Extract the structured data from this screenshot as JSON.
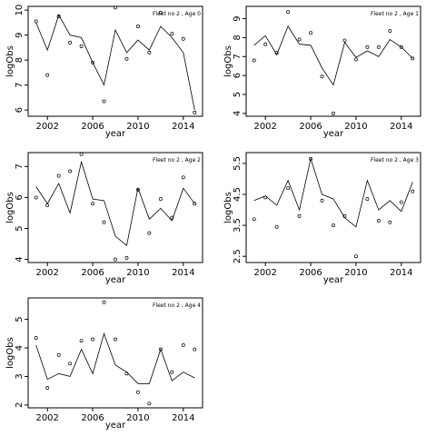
{
  "chart_data": [
    {
      "type": "line",
      "title": "Fleet no 2 , Age 0",
      "xlabel": "year",
      "ylabel": "logObs",
      "xlim": [
        2000.3,
        2015.7
      ],
      "ylim": [
        5.75,
        10.15
      ],
      "xticks": [
        2002,
        2006,
        2010,
        2014
      ],
      "yticks": [
        6,
        7,
        8,
        9,
        10
      ],
      "x": [
        2001,
        2002,
        2003,
        2004,
        2005,
        2006,
        2007,
        2008,
        2009,
        2010,
        2011,
        2012,
        2013,
        2014,
        2015
      ],
      "series": [
        {
          "type": "line",
          "values": [
            9.5,
            8.4,
            9.8,
            9.0,
            8.9,
            7.9,
            7.0,
            9.2,
            8.3,
            8.8,
            8.4,
            9.35,
            8.9,
            8.3,
            6.0
          ]
        },
        {
          "type": "scatter",
          "values": [
            9.55,
            7.4,
            9.75,
            8.7,
            8.55,
            7.9,
            6.35,
            10.1,
            8.05,
            9.35,
            8.3,
            9.9,
            9.05,
            8.85,
            5.9
          ]
        }
      ]
    },
    {
      "type": "line",
      "title": "Fleet no 2 , Age 1",
      "xlabel": "year",
      "ylabel": "logObs",
      "xlim": [
        2000.3,
        2015.7
      ],
      "ylim": [
        3.85,
        9.65
      ],
      "xticks": [
        2002,
        2006,
        2010,
        2014
      ],
      "yticks": [
        4,
        5,
        6,
        7,
        8,
        9
      ],
      "x": [
        2001,
        2002,
        2003,
        2004,
        2005,
        2006,
        2007,
        2008,
        2009,
        2010,
        2011,
        2012,
        2013,
        2014,
        2015
      ],
      "series": [
        {
          "type": "line",
          "values": [
            7.6,
            8.1,
            7.1,
            8.6,
            7.65,
            7.6,
            6.4,
            5.5,
            7.75,
            6.95,
            7.3,
            7.0,
            7.9,
            7.5,
            6.9
          ]
        },
        {
          "type": "scatter",
          "values": [
            6.8,
            7.65,
            7.2,
            9.35,
            7.9,
            8.25,
            5.95,
            4.0,
            7.85,
            6.85,
            7.5,
            7.5,
            8.35,
            7.5,
            6.9
          ]
        }
      ]
    },
    {
      "type": "line",
      "title": "Fleet no 2 , Age 2",
      "xlabel": "year",
      "ylabel": "logObs",
      "xlim": [
        2000.3,
        2015.7
      ],
      "ylim": [
        3.9,
        7.45
      ],
      "xticks": [
        2002,
        2006,
        2010,
        2014
      ],
      "yticks": [
        4.0,
        5.0,
        6.0,
        7.0
      ],
      "x": [
        2001,
        2002,
        2003,
        2004,
        2005,
        2006,
        2007,
        2008,
        2009,
        2010,
        2011,
        2012,
        2013,
        2014,
        2015
      ],
      "series": [
        {
          "type": "line",
          "values": [
            6.35,
            5.8,
            6.45,
            5.5,
            7.15,
            5.95,
            5.9,
            4.75,
            4.45,
            6.3,
            5.3,
            5.65,
            5.25,
            6.3,
            5.8
          ]
        },
        {
          "type": "scatter",
          "values": [
            6.0,
            5.75,
            6.7,
            6.85,
            7.4,
            5.8,
            5.2,
            4.0,
            4.05,
            6.25,
            4.85,
            5.95,
            5.35,
            6.65,
            5.8
          ]
        }
      ]
    },
    {
      "type": "line",
      "title": "Fleet no 2 , Age 3",
      "xlabel": "year",
      "ylabel": "logObs",
      "xlim": [
        2000.3,
        2015.7
      ],
      "ylim": [
        2.3,
        5.85
      ],
      "xticks": [
        2002,
        2006,
        2010,
        2014
      ],
      "yticks": [
        2.5,
        3.5,
        4.5,
        5.5
      ],
      "x": [
        2001,
        2002,
        2003,
        2004,
        2005,
        2006,
        2007,
        2008,
        2009,
        2010,
        2011,
        2012,
        2013,
        2014,
        2015
      ],
      "series": [
        {
          "type": "line",
          "values": [
            4.3,
            4.45,
            4.15,
            4.95,
            4.0,
            5.65,
            4.5,
            4.35,
            3.75,
            3.45,
            4.95,
            4.0,
            4.3,
            3.95,
            4.9
          ]
        },
        {
          "type": "scatter",
          "values": [
            3.7,
            4.4,
            3.45,
            4.7,
            3.8,
            5.65,
            4.3,
            3.5,
            3.8,
            2.5,
            4.35,
            3.65,
            3.6,
            4.25,
            4.6
          ]
        }
      ]
    },
    {
      "type": "line",
      "title": "Fleet no 2 , Age 4",
      "xlabel": "year",
      "ylabel": "logObs",
      "xlim": [
        2000.3,
        2015.7
      ],
      "ylim": [
        1.9,
        5.75
      ],
      "xticks": [
        2002,
        2006,
        2010,
        2014
      ],
      "yticks": [
        2,
        3,
        4,
        5
      ],
      "x": [
        2001,
        2002,
        2003,
        2004,
        2005,
        2006,
        2007,
        2008,
        2009,
        2010,
        2011,
        2012,
        2013,
        2014,
        2015
      ],
      "series": [
        {
          "type": "line",
          "values": [
            4.1,
            2.9,
            3.1,
            3.0,
            3.95,
            3.1,
            4.5,
            3.4,
            3.15,
            2.75,
            2.75,
            3.95,
            2.85,
            3.15,
            2.95
          ]
        },
        {
          "type": "scatter",
          "values": [
            4.35,
            2.6,
            3.75,
            3.45,
            4.25,
            4.3,
            5.6,
            4.3,
            3.1,
            2.45,
            2.05,
            3.95,
            3.15,
            4.1,
            3.95
          ]
        }
      ]
    }
  ]
}
